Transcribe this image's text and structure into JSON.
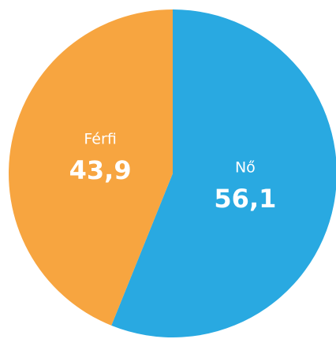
{
  "chart_data": {
    "type": "pie",
    "categories": [
      "Nő",
      "Férfi"
    ],
    "values": [
      56.1,
      43.9
    ],
    "value_labels": [
      "56,1",
      "43,9"
    ],
    "colors": [
      "#29a9e1",
      "#f7a540"
    ]
  }
}
